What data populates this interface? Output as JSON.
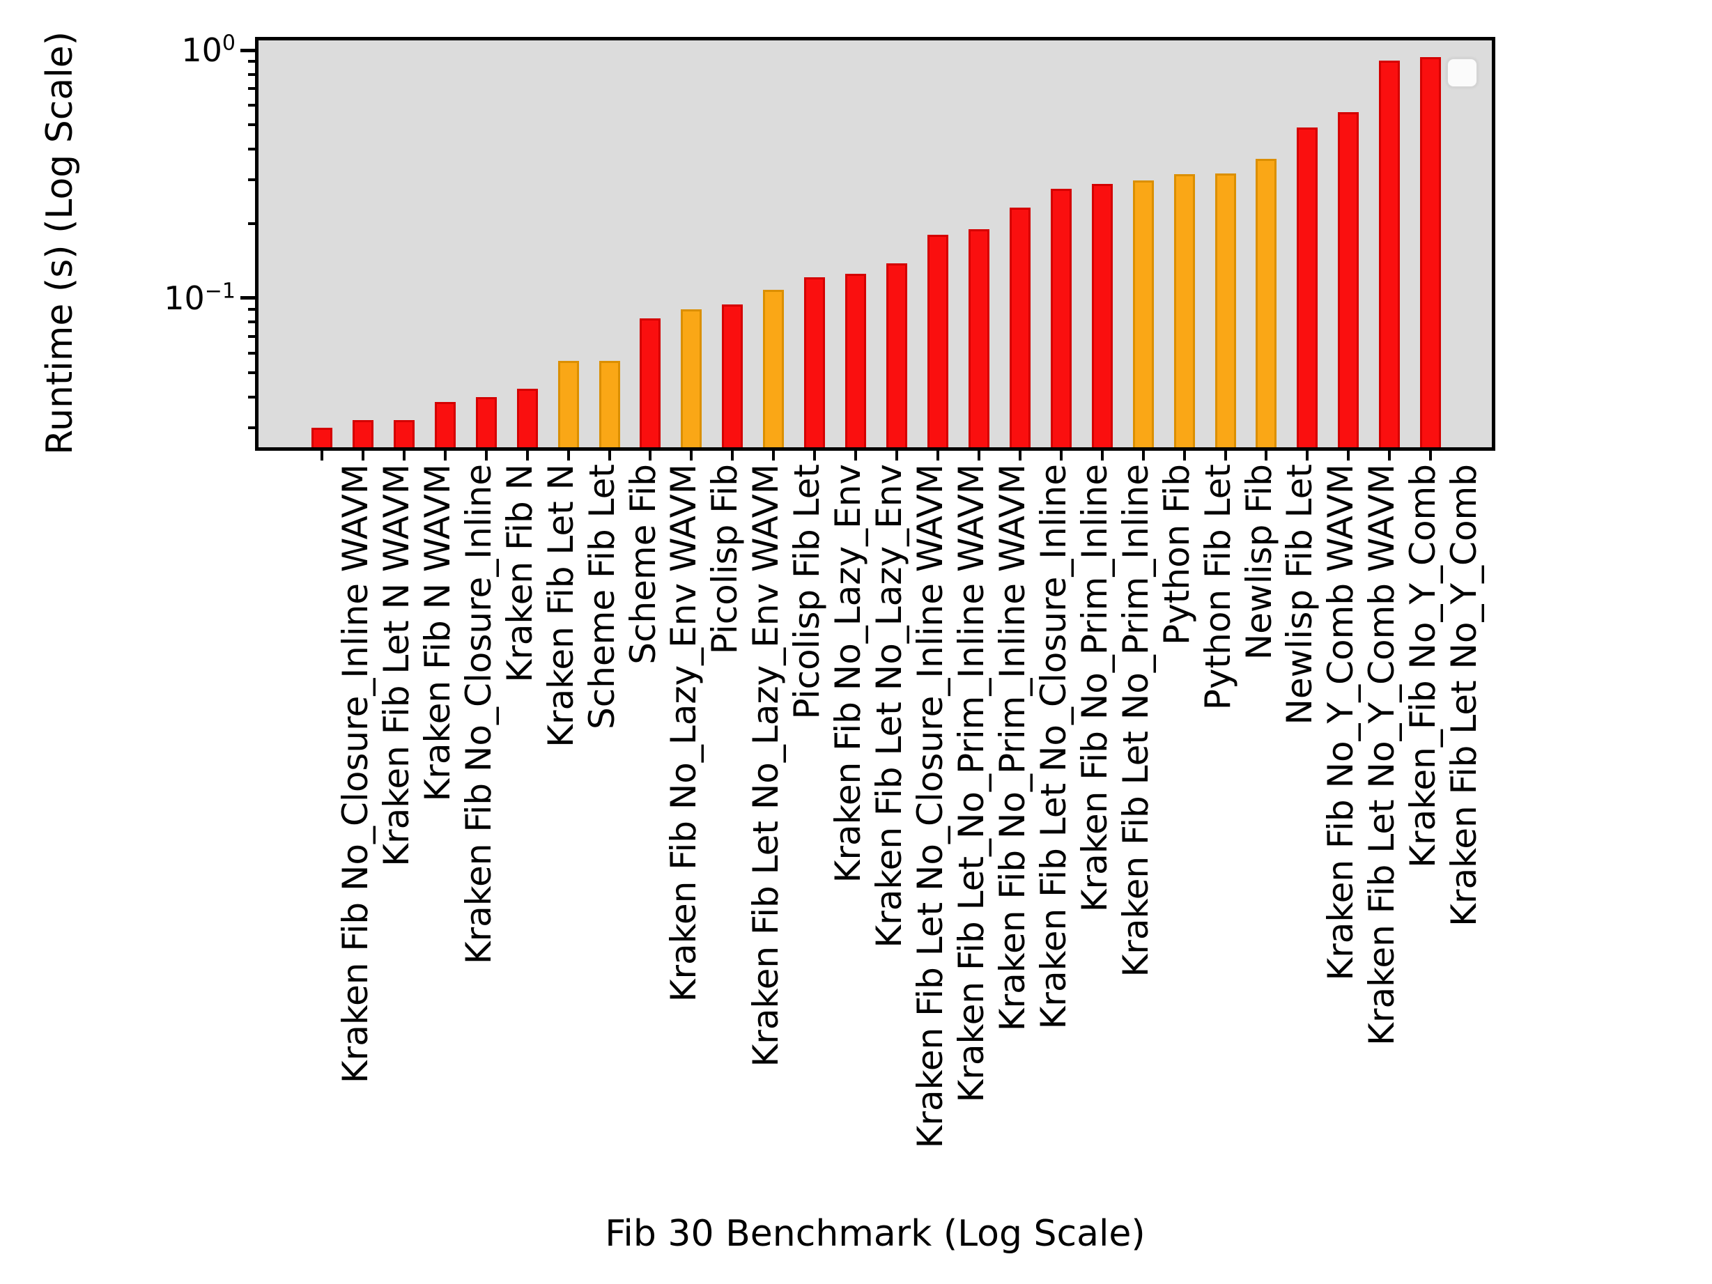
{
  "figure": {
    "xlabel": "Fib 30 Benchmark (Log Scale)",
    "ylabel": "Runtime (s) (Log Scale)",
    "plot_background": "#dcdcdc",
    "page_background": "#ffffff",
    "legend": {
      "present": true,
      "entries": []
    }
  },
  "chart_data": {
    "type": "bar",
    "title": "",
    "xlabel": "Fib 30 Benchmark (Log Scale)",
    "ylabel": "Runtime (s) (Log Scale)",
    "y_scale": "log",
    "ylim": [
      0.0247,
      1.109
    ],
    "grid": false,
    "legend_position": "upper right",
    "y_major_ticks": [
      {
        "value": 1,
        "base": "10",
        "exp": "0"
      },
      {
        "value": 0.1,
        "base": "10",
        "exp": "−1"
      }
    ],
    "y_minor_ticks": [
      0.9,
      0.8,
      0.7,
      0.6,
      0.5,
      0.4,
      0.3,
      0.2,
      0.09,
      0.08,
      0.07,
      0.06,
      0.05,
      0.04,
      0.03
    ],
    "palette": {
      "kraken_red_fill": "#fa0f0f",
      "kraken_red_edge": "#d40000",
      "other_orange_fill": "#faa716",
      "other_orange_edge": "#db8f00"
    },
    "categories": [
      "Kraken Fib No_Closure_Inline WAVM",
      "Kraken Fib Let N WAVM",
      "Kraken Fib N WAVM",
      "Kraken Fib No_Closure_Inline",
      "Kraken Fib N",
      "Kraken Fib Let N",
      "Scheme Fib Let",
      "Scheme Fib",
      "Kraken Fib No_Lazy_Env WAVM",
      "Picolisp Fib",
      "Kraken Fib Let No_Lazy_Env WAVM",
      "Picolisp Fib Let",
      "Kraken Fib No_Lazy_Env",
      "Kraken Fib Let No_Lazy_Env",
      "Kraken Fib Let No_Closure_Inline WAVM",
      "Kraken Fib Let_No_Prim_Inline WAVM",
      "Kraken Fib No_Prim_Inline WAVM",
      "Kraken Fib Let No_Closure_Inline",
      "Kraken Fib No_Prim_Inline",
      "Kraken Fib Let No_Prim_Inline",
      "Python Fib",
      "Python Fib Let",
      "Newlisp Fib",
      "Newlisp Fib Let",
      "Kraken Fib No_Y_Comb WAVM",
      "Kraken Fib Let No_Y_Comb WAVM",
      "Kraken_Fib No_Y_Comb",
      "Kraken Fib Let No_Y_Comb"
    ],
    "values": [
      0.03,
      0.0322,
      0.0323,
      0.038,
      0.04,
      0.043,
      0.056,
      0.056,
      0.083,
      0.09,
      0.094,
      0.108,
      0.121,
      0.125,
      0.138,
      0.18,
      0.19,
      0.232,
      0.276,
      0.289,
      0.298,
      0.316,
      0.318,
      0.365,
      0.488,
      0.562,
      0.908,
      0.937
    ],
    "bar_color_keys": [
      "red",
      "red",
      "red",
      "red",
      "red",
      "red",
      "orange",
      "orange",
      "red",
      "orange",
      "red",
      "orange",
      "red",
      "red",
      "red",
      "red",
      "red",
      "red",
      "red",
      "red",
      "orange",
      "orange",
      "orange",
      "orange",
      "red",
      "red",
      "red",
      "red"
    ]
  }
}
